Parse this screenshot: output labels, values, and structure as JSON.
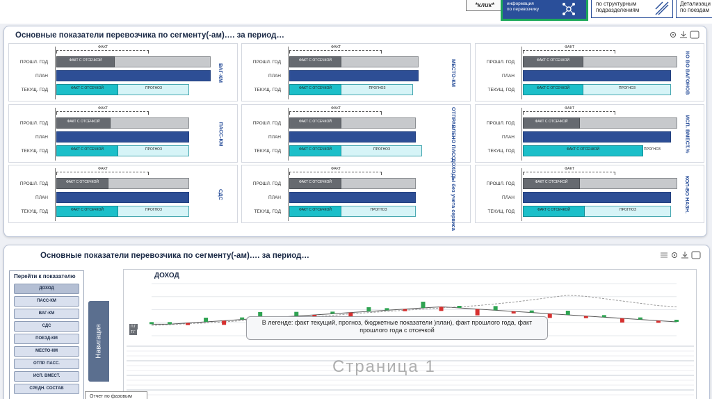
{
  "topbar": {
    "klik": "*клик*",
    "info_tile_line1": "информация",
    "info_tile_line2": "по перевозчику",
    "struct_tile_line1": "по структурным",
    "struct_tile_line2": "подразделениям",
    "poezd_line1": "Детализаци",
    "poezd_line2": "по поездам"
  },
  "panel1": {
    "title": "Основные показатели перевозчика по сегменту(-ам)…. за период…",
    "row_labels": [
      "ПРОШЛ. ГОД",
      "ПЛАН",
      "ТЕКУЩ. ГОД"
    ],
    "fakt_label": "ФАКТ",
    "fakt_otsechka": "ФАКТ С ОТСЕЧКОЙ",
    "prognoz": "ПРОГНОЗ",
    "cards": [
      {
        "side": "ВАГ-КМ",
        "prev_fact": 0.38,
        "prev_total": 1.0,
        "plan": 1.0,
        "cur_fact": 0.4,
        "cur_total": 0.86
      },
      {
        "side": "МЕСТО-КМ",
        "prev_fact": 0.34,
        "prev_total": 0.84,
        "plan": 0.84,
        "cur_fact": 0.34,
        "cur_total": 0.8
      },
      {
        "side": "КО ВО ВАГОНОВ",
        "prev_fact": 0.39,
        "prev_total": 1.0,
        "plan": 0.96,
        "cur_fact": 0.39,
        "cur_total": 0.96
      },
      {
        "side": "ПАСС-КМ",
        "prev_fact": 0.35,
        "prev_total": 0.86,
        "plan": 0.86,
        "cur_fact": 0.4,
        "cur_total": 0.86
      },
      {
        "side": "ОТПРАВЛЕНО ПАСС.",
        "prev_fact": 0.34,
        "prev_total": 0.82,
        "plan": 0.82,
        "cur_fact": 0.34,
        "cur_total": 0.86
      },
      {
        "side": "ИСП. ВМЕСТ.%",
        "prev_fact": 0.37,
        "prev_total": 1.0,
        "plan": 0.96,
        "cur_fact": 0.78,
        "cur_total": 0.78
      },
      {
        "side": "СДС",
        "prev_fact": 0.34,
        "prev_total": 0.86,
        "plan": 0.86,
        "cur_fact": 0.4,
        "cur_total": 0.86
      },
      {
        "side": "ДОХОДЫ без учета сервиса",
        "prev_fact": 0.34,
        "prev_total": 0.82,
        "plan": 0.82,
        "cur_fact": 0.34,
        "cur_total": 0.82
      },
      {
        "side": "КОЛ-ВО НАЗН.",
        "prev_fact": 0.37,
        "prev_total": 1.0,
        "plan": 0.96,
        "cur_fact": 0.4,
        "cur_total": 0.96
      }
    ]
  },
  "panel2": {
    "title": "Основные показатели перевозчика по сегменту(-ам)…. за период…",
    "nav_head": "Перейти к показателю",
    "nav_items": [
      "ДОХОД",
      "ПАСС-КМ",
      "ВАГ-КМ",
      "СДС",
      "ПОЕЗД-КМ",
      "МЕСТО-КМ",
      "ОТПР. ПАСС.",
      "ИСП. ВМЕСТ.",
      "СРЕДН. СОСТАВ"
    ],
    "nav_tab": "Навигация",
    "otchet": "Отчет по фазовым",
    "chart_title": "ДОХОД",
    "callout": "В легенде: факт текущий, прогноз, бюджетные показатели )план), факт прошлого года, факт прошлого года с отсечкой",
    "watermark": "Страница 1",
    "side_pg": "П.Г",
    "side_tg": "Т.Г"
  },
  "chart_data": {
    "type": "line",
    "title": "ДОХОД",
    "series": [
      {
        "values": [
          60,
          60,
          62,
          64,
          66,
          68,
          70,
          72,
          74,
          76,
          78,
          80,
          82,
          84,
          86,
          88,
          90,
          88,
          86,
          84,
          82,
          80,
          78,
          76,
          74,
          72,
          70,
          68,
          66,
          64
        ]
      },
      {
        "values": [
          58,
          59,
          61,
          62,
          64,
          66,
          68,
          70,
          71,
          73,
          75,
          78,
          80,
          82,
          84,
          86,
          88,
          90,
          92,
          95,
          98,
          102,
          106,
          110,
          108,
          104,
          100,
          96,
          92,
          90
        ]
      }
    ],
    "candles": [
      0,
      1,
      -1,
      2,
      -2,
      1,
      3,
      -3,
      2,
      -1,
      1,
      -2,
      2,
      1,
      -1,
      3,
      -2,
      1,
      -3,
      2,
      -1,
      1,
      -2,
      2,
      -1,
      1,
      -2,
      1,
      -1,
      1
    ]
  }
}
